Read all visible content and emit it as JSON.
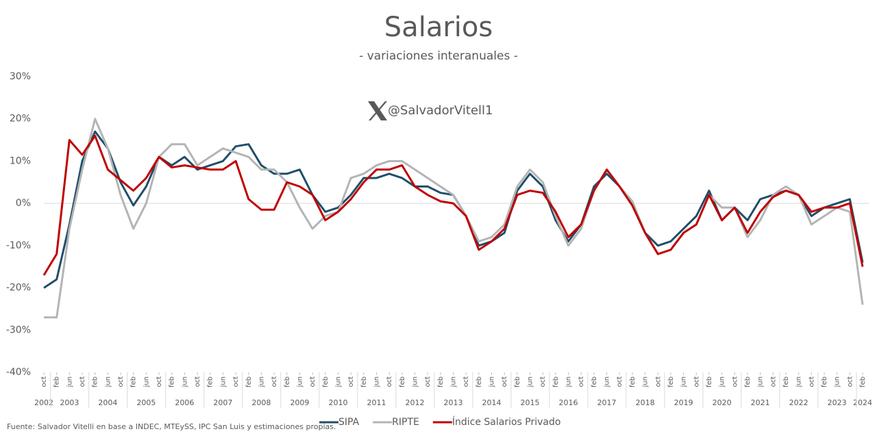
{
  "chart_data": {
    "type": "line",
    "title": "Salarios",
    "subtitle": "- variaciones interanuales -",
    "handle": "@SalvadorVitell1",
    "source": "Fuente: Salvador Vitelli en base a INDEC, MTEySS, IPC San Luis y estimaciones propias.",
    "categories": [
      "oct",
      "feb",
      "jun",
      "oct",
      "feb",
      "jun",
      "oct",
      "feb",
      "jun",
      "oct",
      "feb",
      "jun",
      "oct",
      "feb",
      "jun",
      "oct",
      "feb",
      "jun",
      "oct",
      "feb",
      "jun",
      "oct",
      "feb",
      "jun",
      "oct",
      "feb",
      "jun",
      "oct",
      "feb",
      "jun",
      "oct",
      "feb",
      "jun",
      "oct",
      "feb",
      "jun",
      "oct",
      "feb",
      "jun",
      "oct",
      "feb",
      "jun",
      "oct",
      "feb",
      "jun",
      "oct",
      "feb",
      "jun",
      "oct",
      "feb",
      "jun",
      "oct",
      "feb",
      "jun",
      "oct",
      "feb",
      "jun",
      "oct",
      "feb",
      "jun",
      "oct",
      "feb",
      "jun",
      "oct",
      "feb"
    ],
    "years": [
      "2002",
      "2003",
      "2004",
      "2005",
      "2006",
      "2007",
      "2008",
      "2009",
      "2010",
      "2011",
      "2012",
      "2013",
      "2014",
      "2015",
      "2016",
      "2017",
      "2018",
      "2019",
      "2020",
      "2021",
      "2022",
      "2023",
      "2024"
    ],
    "ylim": [
      -40,
      30
    ],
    "yticks": [
      {
        "value": -40,
        "label": "-40%"
      },
      {
        "value": -30,
        "label": "-30%"
      },
      {
        "value": -20,
        "label": "-20%"
      },
      {
        "value": -10,
        "label": "-10%"
      },
      {
        "value": 0,
        "label": "0%"
      },
      {
        "value": 10,
        "label": "10%"
      },
      {
        "value": 20,
        "label": "20%"
      },
      {
        "value": 30,
        "label": "30%"
      }
    ],
    "series": [
      {
        "name": "SIPA",
        "color": "#1f4e69",
        "values": [
          -20,
          -18,
          -5,
          10,
          17,
          13,
          5,
          -0.5,
          4,
          11,
          9,
          11,
          8,
          9,
          10,
          13.5,
          14,
          9,
          7,
          7,
          8,
          2,
          -2,
          -1,
          2,
          6,
          6,
          7,
          6,
          4,
          4,
          2.5,
          2,
          -3,
          -10,
          -9,
          -7,
          3,
          7,
          4,
          -4,
          -9,
          -5,
          4,
          7,
          4,
          -0.5,
          -7,
          -10,
          -9,
          -6,
          -3,
          3,
          -4,
          -1,
          -4,
          1,
          2,
          3,
          2,
          -3,
          -1,
          0,
          1,
          -14
        ]
      },
      {
        "name": "RIPTE",
        "color": "#b4b4b4",
        "values": [
          -27,
          -27,
          -6,
          8,
          20,
          13,
          2,
          -6,
          0,
          11,
          14,
          14,
          9,
          11,
          13,
          12,
          11,
          8,
          8,
          5,
          -1,
          -6,
          -3,
          -2,
          6,
          7,
          9,
          10,
          10,
          8,
          6,
          4,
          2,
          -3,
          -9,
          -8,
          -5,
          4,
          8,
          5,
          -3,
          -10,
          -6,
          3,
          8,
          4,
          0.5,
          -7,
          -12,
          -11,
          -7,
          -5,
          2,
          -1,
          -1,
          -8,
          -4,
          2,
          4,
          2,
          -5,
          -3,
          -1,
          -2,
          -24
        ]
      },
      {
        "name": "Índice Salarios Privado",
        "color": "#c00000",
        "values": [
          -17,
          -12,
          15,
          11.5,
          16,
          8,
          5.5,
          3,
          6,
          11,
          8.5,
          9,
          8.5,
          8,
          8,
          10,
          1,
          -1.5,
          -1.5,
          5,
          4,
          2,
          -4,
          -2,
          1,
          5,
          8,
          8,
          9,
          4,
          2,
          0.5,
          0,
          -3,
          -11,
          -9,
          -6,
          2,
          3,
          2.5,
          -2,
          -8,
          -5,
          3,
          8,
          4,
          -0.5,
          -7,
          -12,
          -11,
          -7,
          -5,
          2,
          -4,
          -1,
          -7,
          -2,
          1.5,
          3,
          2,
          -2,
          -1,
          -1,
          0,
          -15
        ]
      }
    ]
  }
}
